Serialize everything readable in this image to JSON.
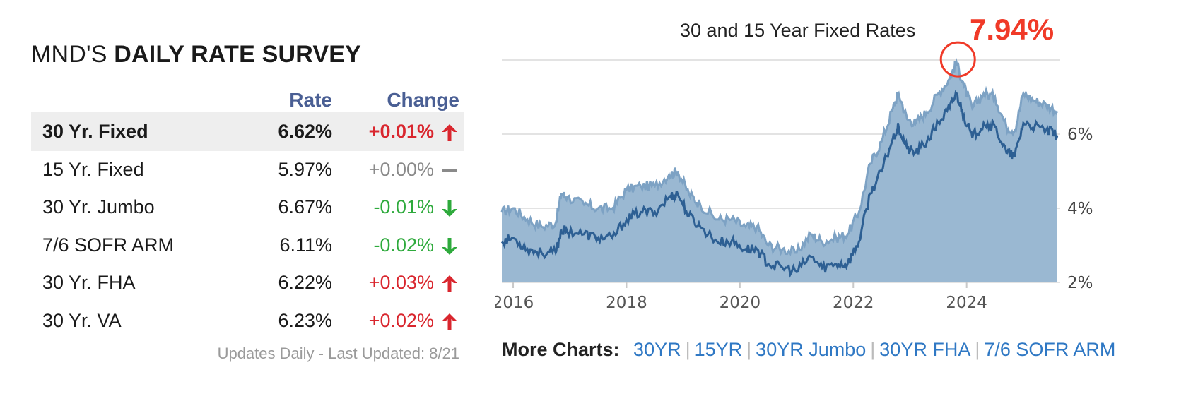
{
  "survey": {
    "title_prefix": "MND'S",
    "title_bold": "DAILY RATE SURVEY",
    "headers": {
      "rate": "Rate",
      "change": "Change"
    },
    "rows": [
      {
        "name": "30 Yr. Fixed",
        "rate": "6.62%",
        "change": "+0.01%",
        "direction": "up",
        "highlight": true
      },
      {
        "name": "15 Yr. Fixed",
        "rate": "5.97%",
        "change": "+0.00%",
        "direction": "flat",
        "highlight": false
      },
      {
        "name": "30 Yr. Jumbo",
        "rate": "6.67%",
        "change": "-0.01%",
        "direction": "down",
        "highlight": false
      },
      {
        "name": "7/6 SOFR ARM",
        "rate": "6.11%",
        "change": "-0.02%",
        "direction": "down",
        "highlight": false
      },
      {
        "name": "30 Yr. FHA",
        "rate": "6.22%",
        "change": "+0.03%",
        "direction": "up",
        "highlight": false
      },
      {
        "name": "30 Yr. VA",
        "rate": "6.23%",
        "change": "+0.02%",
        "direction": "up",
        "highlight": false
      }
    ],
    "footer": "Updates Daily - Last Updated: 8/21",
    "colors": {
      "up": "#d9262e",
      "down": "#2eaa3c",
      "flat": "#8a8a8a",
      "header": "#4a5f94"
    }
  },
  "chart": {
    "title": "30 and 15 Year Fixed Rates",
    "annotation": "7.94%",
    "x_ticks": [
      "2016",
      "2018",
      "2020",
      "2022",
      "2024"
    ],
    "y_ticks": [
      "2%",
      "4%",
      "6%"
    ],
    "colors": {
      "area": "#9ab8d2",
      "line_30": "#7da2c4",
      "line_15": "#2d5f93",
      "annotation": "#f03a28"
    }
  },
  "chart_data": {
    "type": "area",
    "title": "30 and 15 Year Fixed Rates",
    "xlabel": "",
    "ylabel": "",
    "xlim": [
      2015.8,
      2025.65
    ],
    "ylim": [
      2,
      8
    ],
    "y_ticks": [
      2,
      4,
      6
    ],
    "x_ticks": [
      2016,
      2018,
      2020,
      2022,
      2024
    ],
    "grid": true,
    "series": [
      {
        "x": [
          2015.8,
          2016.0,
          2016.25,
          2016.5,
          2016.75,
          2016.85,
          2016.95,
          2017.25,
          2017.5,
          2017.75,
          2018.0,
          2018.25,
          2018.5,
          2018.75,
          2018.9,
          2019.1,
          2019.3,
          2019.6,
          2019.85,
          2020.1,
          2020.3,
          2020.5,
          2020.75,
          2021.0,
          2021.25,
          2021.45,
          2021.7,
          2021.9,
          2022.1,
          2022.3,
          2022.5,
          2022.7,
          2022.8,
          2022.95,
          2023.1,
          2023.3,
          2023.5,
          2023.7,
          2023.82,
          2023.95,
          2024.1,
          2024.3,
          2024.5,
          2024.7,
          2024.85,
          2025.0,
          2025.2,
          2025.4,
          2025.6
        ],
        "y": [
          3.9,
          4.0,
          3.7,
          3.5,
          3.6,
          4.4,
          4.3,
          4.1,
          4.0,
          4.0,
          4.5,
          4.6,
          4.6,
          4.9,
          5.0,
          4.4,
          4.1,
          3.7,
          3.7,
          3.5,
          3.5,
          3.0,
          2.9,
          2.8,
          3.3,
          3.1,
          3.2,
          3.3,
          3.9,
          5.2,
          5.8,
          6.7,
          7.1,
          6.4,
          6.3,
          6.6,
          7.1,
          7.5,
          7.94,
          7.3,
          6.7,
          7.1,
          7.0,
          6.2,
          6.1,
          7.1,
          6.9,
          6.8,
          6.62
        ]
      },
      {
        "x": [
          2015.8,
          2016.0,
          2016.25,
          2016.5,
          2016.75,
          2016.85,
          2016.95,
          2017.25,
          2017.5,
          2017.75,
          2018.0,
          2018.25,
          2018.5,
          2018.75,
          2018.9,
          2019.1,
          2019.3,
          2019.6,
          2019.85,
          2020.1,
          2020.3,
          2020.5,
          2020.75,
          2021.0,
          2021.25,
          2021.45,
          2021.7,
          2021.9,
          2022.1,
          2022.3,
          2022.5,
          2022.7,
          2022.8,
          2022.95,
          2023.1,
          2023.3,
          2023.5,
          2023.7,
          2023.82,
          2023.95,
          2024.1,
          2024.3,
          2024.5,
          2024.7,
          2024.85,
          2025.0,
          2025.2,
          2025.4,
          2025.6
        ],
        "y": [
          3.1,
          3.2,
          2.9,
          2.8,
          2.8,
          3.4,
          3.4,
          3.3,
          3.2,
          3.2,
          3.7,
          3.9,
          3.9,
          4.3,
          4.4,
          3.8,
          3.5,
          3.1,
          3.1,
          2.9,
          2.9,
          2.5,
          2.4,
          2.3,
          2.7,
          2.4,
          2.5,
          2.5,
          3.1,
          4.4,
          5.0,
          5.9,
          6.2,
          5.6,
          5.5,
          5.8,
          6.3,
          6.7,
          7.1,
          6.5,
          5.9,
          6.3,
          6.2,
          5.5,
          5.4,
          6.3,
          6.2,
          6.1,
          5.97
        ]
      }
    ],
    "annotations": [
      {
        "x": 2023.82,
        "y": 7.94,
        "text": "7.94%"
      }
    ]
  },
  "more_charts": {
    "label": "More Charts:",
    "links": [
      "30YR",
      "15YR",
      "30YR Jumbo",
      "30YR FHA",
      "7/6 SOFR ARM"
    ]
  }
}
